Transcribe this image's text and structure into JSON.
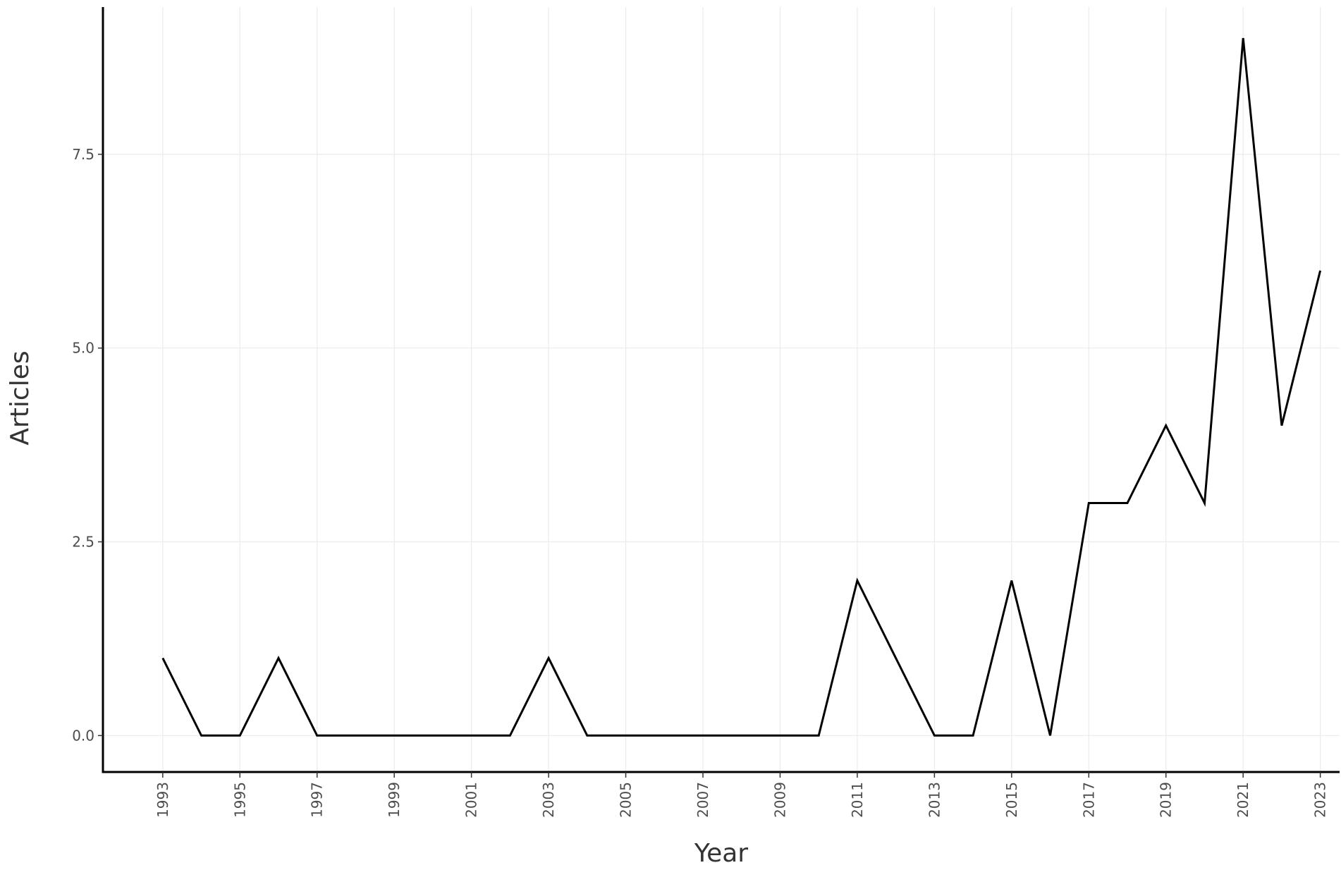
{
  "chart_data": {
    "type": "line",
    "xlabel": "Year",
    "ylabel": "Articles",
    "x": [
      1993,
      1994,
      1995,
      1996,
      1997,
      1998,
      1999,
      2000,
      2001,
      2002,
      2003,
      2004,
      2005,
      2006,
      2007,
      2008,
      2009,
      2010,
      2011,
      2012,
      2013,
      2014,
      2015,
      2016,
      2017,
      2018,
      2019,
      2020,
      2021,
      2022,
      2023
    ],
    "values": [
      1,
      0,
      0,
      1,
      0,
      0,
      0,
      0,
      0,
      0,
      1,
      0,
      0,
      0,
      0,
      0,
      0,
      0,
      2,
      1,
      0,
      0,
      2,
      0,
      3,
      3,
      4,
      3,
      9,
      4,
      6
    ],
    "xticks": [
      "1993",
      "1995",
      "1997",
      "1999",
      "2001",
      "2003",
      "2005",
      "2007",
      "2009",
      "2011",
      "2013",
      "2015",
      "2017",
      "2019",
      "2021",
      "2023"
    ],
    "yticks": [
      "0.0",
      "2.5",
      "5.0",
      "7.5"
    ],
    "xlim": [
      1991.45,
      2023.5
    ],
    "ylim": [
      -0.47,
      9.4
    ],
    "grid": true,
    "series_color": "#000000"
  }
}
